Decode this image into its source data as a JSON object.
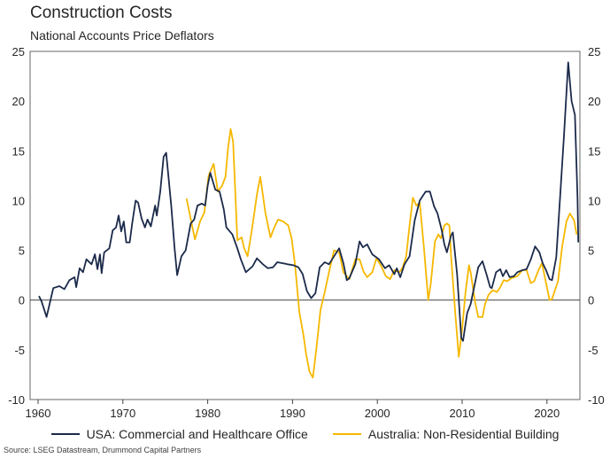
{
  "chart_data": {
    "type": "line",
    "title": "Construction Costs",
    "subtitle": "National Accounts Price Deflators",
    "xlabel": "",
    "ylabel": "",
    "xlim": [
      1959,
      2024.5
    ],
    "ylim": [
      -10,
      25
    ],
    "x_ticks": [
      1960,
      1970,
      1980,
      1990,
      2000,
      2010,
      2020
    ],
    "x_tick_labels": [
      "1960",
      "1970",
      "1980",
      "1990",
      "2000",
      "2010",
      "2020"
    ],
    "y_ticks": [
      -10,
      -5,
      0,
      5,
      10,
      15,
      20,
      25
    ],
    "y_tick_labels": [
      "-10",
      "-5",
      "0",
      "5",
      "10",
      "15",
      "20",
      "25"
    ],
    "y_axis_mirrored_right": true,
    "zero_line": true,
    "grid": false,
    "legend_position": "bottom",
    "series": [
      {
        "name": "USA: Commercial and Healthcare Office",
        "color": "#1b2a4a",
        "points": [
          [
            1960.1,
            0.4
          ],
          [
            1960.4,
            -0.1
          ],
          [
            1961.0,
            -1.7
          ],
          [
            1961.8,
            1.2
          ],
          [
            1962.5,
            1.4
          ],
          [
            1963.1,
            1.1
          ],
          [
            1963.7,
            2.0
          ],
          [
            1964.3,
            2.3
          ],
          [
            1964.5,
            1.3
          ],
          [
            1964.9,
            3.2
          ],
          [
            1965.3,
            2.8
          ],
          [
            1965.7,
            4.1
          ],
          [
            1966.3,
            3.6
          ],
          [
            1966.7,
            4.6
          ],
          [
            1967.0,
            3.1
          ],
          [
            1967.3,
            4.6
          ],
          [
            1967.5,
            2.7
          ],
          [
            1967.8,
            4.8
          ],
          [
            1968.4,
            5.2
          ],
          [
            1968.8,
            7.0
          ],
          [
            1969.2,
            7.3
          ],
          [
            1969.5,
            8.5
          ],
          [
            1969.8,
            6.9
          ],
          [
            1970.1,
            7.9
          ],
          [
            1970.4,
            5.8
          ],
          [
            1970.8,
            5.8
          ],
          [
            1971.1,
            7.7
          ],
          [
            1971.5,
            10.0
          ],
          [
            1971.8,
            9.8
          ],
          [
            1972.2,
            8.2
          ],
          [
            1972.6,
            7.3
          ],
          [
            1972.9,
            8.1
          ],
          [
            1973.3,
            7.4
          ],
          [
            1973.8,
            9.5
          ],
          [
            1974.0,
            8.5
          ],
          [
            1974.4,
            10.9
          ],
          [
            1974.8,
            14.4
          ],
          [
            1975.1,
            14.8
          ],
          [
            1975.7,
            9.5
          ],
          [
            1976.1,
            5.2
          ],
          [
            1976.4,
            2.5
          ],
          [
            1976.9,
            4.4
          ],
          [
            1977.4,
            5.0
          ],
          [
            1978.0,
            7.7
          ],
          [
            1978.4,
            8.1
          ],
          [
            1978.8,
            9.5
          ],
          [
            1979.3,
            9.7
          ],
          [
            1979.7,
            9.5
          ],
          [
            1980.0,
            11.5
          ],
          [
            1980.3,
            12.8
          ],
          [
            1980.9,
            11.1
          ],
          [
            1981.4,
            10.9
          ],
          [
            1981.9,
            9.1
          ],
          [
            1982.2,
            7.3
          ],
          [
            1982.9,
            6.6
          ],
          [
            1983.5,
            5.2
          ],
          [
            1983.9,
            4.1
          ],
          [
            1984.5,
            2.8
          ],
          [
            1985.3,
            3.4
          ],
          [
            1985.8,
            4.2
          ],
          [
            1986.5,
            3.6
          ],
          [
            1987.1,
            3.2
          ],
          [
            1987.7,
            3.3
          ],
          [
            1988.2,
            3.8
          ],
          [
            1988.9,
            3.7
          ],
          [
            1989.4,
            3.6
          ],
          [
            1990.1,
            3.5
          ],
          [
            1990.7,
            3.3
          ],
          [
            1991.2,
            2.6
          ],
          [
            1991.7,
            0.9
          ],
          [
            1992.2,
            0.2
          ],
          [
            1992.7,
            0.7
          ],
          [
            1993.2,
            3.3
          ],
          [
            1993.8,
            3.8
          ],
          [
            1994.3,
            3.6
          ],
          [
            1994.9,
            4.4
          ],
          [
            1995.5,
            5.2
          ],
          [
            1996.0,
            3.7
          ],
          [
            1996.4,
            2.0
          ],
          [
            1996.7,
            2.2
          ],
          [
            1997.4,
            3.6
          ],
          [
            1997.9,
            5.9
          ],
          [
            1998.3,
            5.3
          ],
          [
            1998.8,
            5.6
          ],
          [
            1999.4,
            4.6
          ],
          [
            2000.2,
            4.1
          ],
          [
            2000.9,
            3.2
          ],
          [
            2001.4,
            3.5
          ],
          [
            2002.0,
            2.6
          ],
          [
            2002.3,
            3.2
          ],
          [
            2002.7,
            2.3
          ],
          [
            2003.2,
            3.6
          ],
          [
            2003.8,
            4.4
          ],
          [
            2004.4,
            8.0
          ],
          [
            2005.0,
            10.0
          ],
          [
            2005.7,
            10.9
          ],
          [
            2006.2,
            10.9
          ],
          [
            2006.7,
            9.4
          ],
          [
            2007.1,
            8.7
          ],
          [
            2007.6,
            7.0
          ],
          [
            2007.9,
            5.6
          ],
          [
            2008.2,
            4.8
          ],
          [
            2008.7,
            6.5
          ],
          [
            2008.9,
            6.8
          ],
          [
            2009.4,
            2.6
          ],
          [
            2009.9,
            -3.8
          ],
          [
            2010.1,
            -4.1
          ],
          [
            2010.6,
            -1.3
          ],
          [
            2011.0,
            -0.4
          ],
          [
            2011.9,
            3.3
          ],
          [
            2012.4,
            3.9
          ],
          [
            2012.9,
            2.5
          ],
          [
            2013.3,
            1.3
          ],
          [
            2013.5,
            1.2
          ],
          [
            2014.0,
            2.8
          ],
          [
            2014.5,
            3.1
          ],
          [
            2014.8,
            2.4
          ],
          [
            2015.2,
            3.0
          ],
          [
            2015.6,
            2.3
          ],
          [
            2016.1,
            2.4
          ],
          [
            2016.5,
            2.8
          ],
          [
            2017.1,
            3.0
          ],
          [
            2017.6,
            3.1
          ],
          [
            2018.1,
            4.1
          ],
          [
            2018.6,
            5.4
          ],
          [
            2019.1,
            4.8
          ],
          [
            2019.5,
            3.7
          ],
          [
            2019.9,
            3.0
          ],
          [
            2020.3,
            2.1
          ],
          [
            2020.6,
            2.0
          ],
          [
            2021.1,
            4.3
          ],
          [
            2021.6,
            11.0
          ],
          [
            2022.0,
            16.5
          ],
          [
            2022.5,
            23.9
          ],
          [
            2022.9,
            20.0
          ],
          [
            2023.3,
            18.6
          ],
          [
            2023.6,
            10.3
          ],
          [
            2023.7,
            5.8
          ]
        ]
      },
      {
        "name": "Australia: Non-Residential Building",
        "color": "#f5b800",
        "points": [
          [
            1977.5,
            10.2
          ],
          [
            1977.8,
            9.0
          ],
          [
            1978.5,
            6.1
          ],
          [
            1979.1,
            7.9
          ],
          [
            1979.6,
            8.8
          ],
          [
            1980.1,
            12.5
          ],
          [
            1980.7,
            13.7
          ],
          [
            1981.2,
            10.9
          ],
          [
            1981.7,
            11.5
          ],
          [
            1982.1,
            12.4
          ],
          [
            1982.4,
            15.3
          ],
          [
            1982.7,
            17.2
          ],
          [
            1983.0,
            15.9
          ],
          [
            1983.5,
            6.0
          ],
          [
            1984.0,
            6.3
          ],
          [
            1984.3,
            5.2
          ],
          [
            1984.7,
            4.4
          ],
          [
            1985.2,
            7.0
          ],
          [
            1985.8,
            10.6
          ],
          [
            1986.2,
            12.4
          ],
          [
            1986.8,
            8.8
          ],
          [
            1987.4,
            6.3
          ],
          [
            1987.8,
            7.2
          ],
          [
            1988.3,
            8.1
          ],
          [
            1988.9,
            7.9
          ],
          [
            1989.5,
            7.5
          ],
          [
            1989.9,
            6.2
          ],
          [
            1990.3,
            3.5
          ],
          [
            1990.8,
            -1.2
          ],
          [
            1991.3,
            -3.6
          ],
          [
            1991.6,
            -5.4
          ],
          [
            1992.0,
            -7.2
          ],
          [
            1992.4,
            -7.8
          ],
          [
            1992.8,
            -5.0
          ],
          [
            1993.3,
            -1.0
          ],
          [
            1993.8,
            0.8
          ],
          [
            1994.3,
            2.8
          ],
          [
            1994.9,
            5.0
          ],
          [
            1995.5,
            4.8
          ],
          [
            1996.0,
            2.8
          ],
          [
            1996.7,
            2.1
          ],
          [
            1997.4,
            4.1
          ],
          [
            1997.9,
            4.1
          ],
          [
            1998.4,
            2.8
          ],
          [
            1998.8,
            2.3
          ],
          [
            1999.4,
            2.8
          ],
          [
            1999.9,
            4.2
          ],
          [
            2000.4,
            3.5
          ],
          [
            2001.0,
            2.4
          ],
          [
            2001.5,
            2.1
          ],
          [
            2002.0,
            3.0
          ],
          [
            2002.6,
            2.8
          ],
          [
            2003.0,
            3.3
          ],
          [
            2003.4,
            4.4
          ],
          [
            2003.8,
            7.5
          ],
          [
            2004.2,
            10.3
          ],
          [
            2004.6,
            9.5
          ],
          [
            2005.0,
            9.8
          ],
          [
            2005.5,
            5.2
          ],
          [
            2006.0,
            0.0
          ],
          [
            2006.3,
            1.7
          ],
          [
            2006.8,
            5.9
          ],
          [
            2007.2,
            6.6
          ],
          [
            2007.5,
            6.2
          ],
          [
            2007.9,
            7.5
          ],
          [
            2008.2,
            7.7
          ],
          [
            2008.5,
            7.5
          ],
          [
            2008.7,
            4.4
          ],
          [
            2009.2,
            -1.4
          ],
          [
            2009.6,
            -5.7
          ],
          [
            2010.0,
            -2.9
          ],
          [
            2010.4,
            0.8
          ],
          [
            2010.8,
            3.5
          ],
          [
            2011.0,
            2.8
          ],
          [
            2011.5,
            -0.1
          ],
          [
            2011.9,
            -1.7
          ],
          [
            2012.4,
            -1.7
          ],
          [
            2012.7,
            -0.4
          ],
          [
            2013.1,
            0.5
          ],
          [
            2013.6,
            1.0
          ],
          [
            2014.1,
            0.8
          ],
          [
            2014.5,
            1.3
          ],
          [
            2014.9,
            2.0
          ],
          [
            2015.3,
            1.9
          ],
          [
            2015.8,
            2.2
          ],
          [
            2016.5,
            2.4
          ],
          [
            2017.1,
            3.0
          ],
          [
            2017.6,
            3.0
          ],
          [
            2018.1,
            1.7
          ],
          [
            2018.5,
            1.9
          ],
          [
            2019.0,
            3.0
          ],
          [
            2019.4,
            3.7
          ],
          [
            2019.9,
            1.7
          ],
          [
            2020.3,
            0.0
          ],
          [
            2020.6,
            0.1
          ],
          [
            2021.3,
            1.9
          ],
          [
            2021.8,
            5.4
          ],
          [
            2022.3,
            7.9
          ],
          [
            2022.7,
            8.7
          ],
          [
            2023.2,
            8.0
          ],
          [
            2023.5,
            6.6
          ]
        ]
      }
    ],
    "source": "Source: LSEG Datastream, Drummond Capital Partners"
  }
}
